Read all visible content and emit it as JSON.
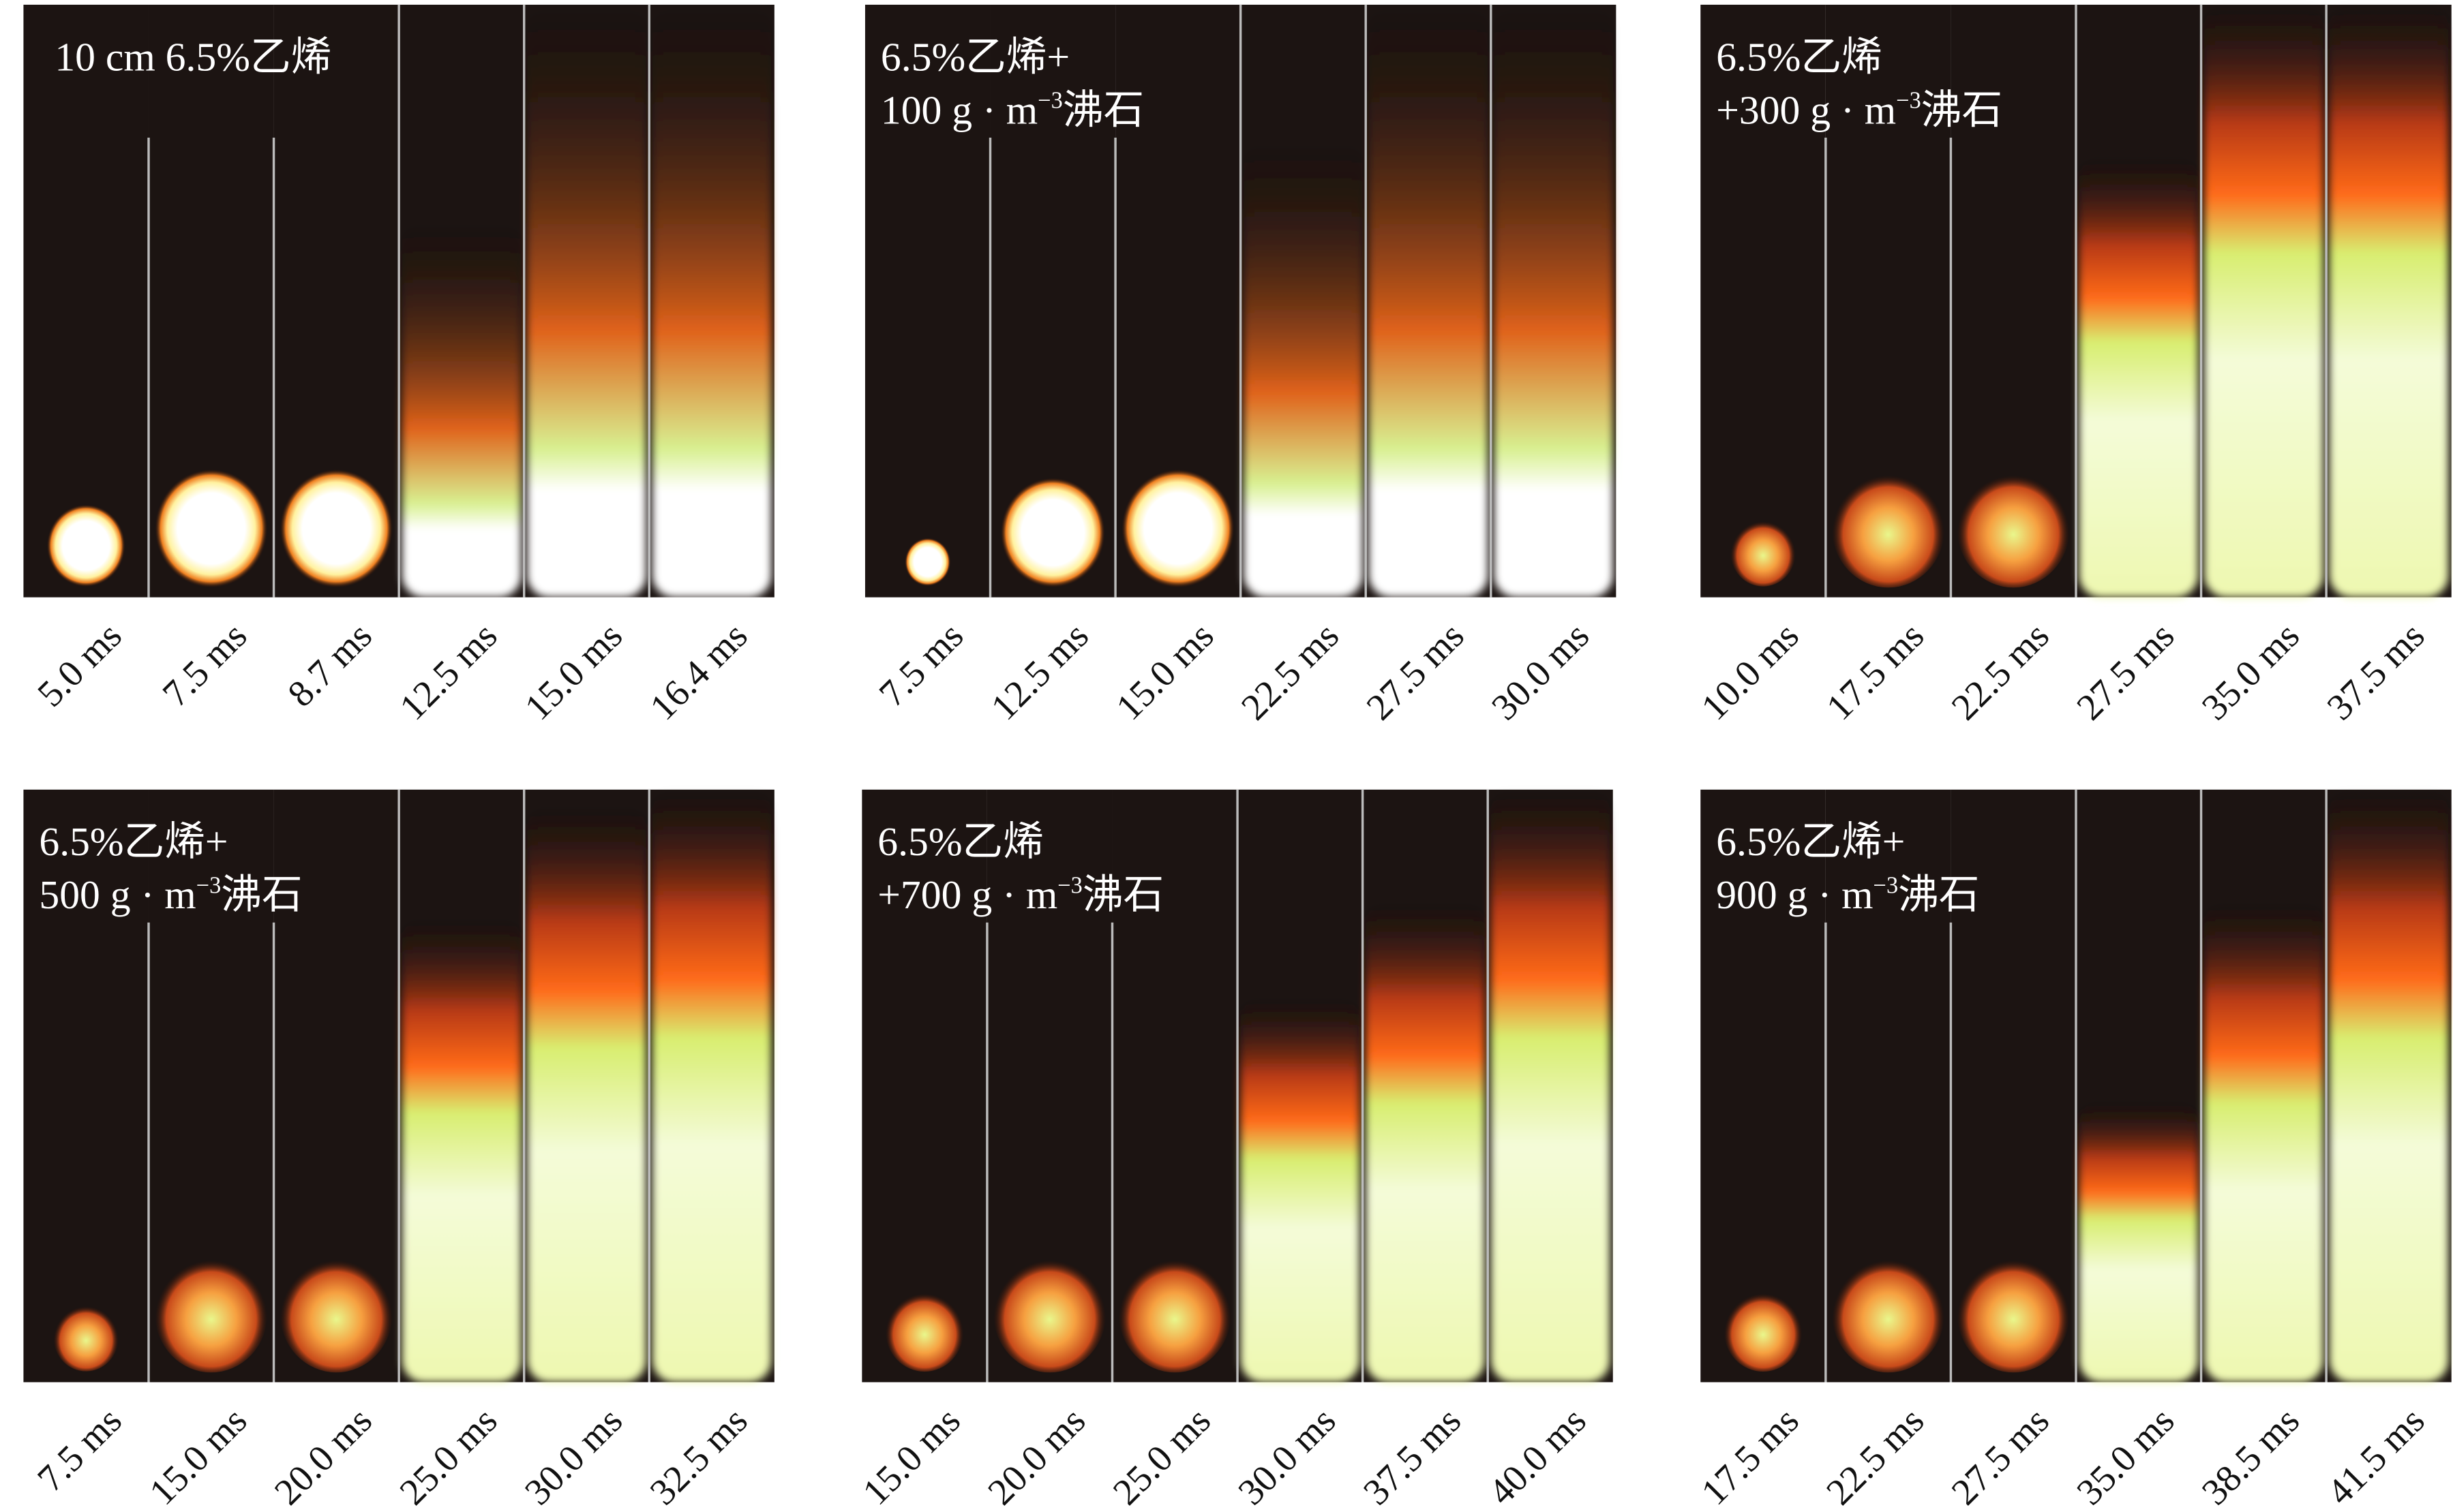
{
  "panels": [
    {
      "label": [
        {
          "text": "10 cm 6.5%乙烯"
        }
      ],
      "times": [
        "5.0 ms",
        "7.5 ms",
        "8.7 ms",
        "12.5 ms",
        "15.0 ms",
        "16.4 ms"
      ]
    },
    {
      "label": [
        {
          "text": "6.5%乙烯+"
        },
        {
          "text": "100 g · m",
          "sup": "−3",
          "after": "沸石"
        }
      ],
      "times": [
        "7.5 ms",
        "12.5 ms",
        "15.0 ms",
        "22.5 ms",
        "27.5 ms",
        "30.0 ms"
      ]
    },
    {
      "label": [
        {
          "text": "6.5%乙烯"
        },
        {
          "text": "+300 g · m",
          "sup": "−3",
          "after": "沸石"
        }
      ],
      "times": [
        "10.0 ms",
        "17.5 ms",
        "22.5 ms",
        "27.5 ms",
        "35.0 ms",
        "37.5 ms"
      ]
    },
    {
      "label": [
        {
          "text": "6.5%乙烯+"
        },
        {
          "text": "500 g · m",
          "sup": "−3",
          "after": "沸石"
        }
      ],
      "times": [
        "7.5 ms",
        "15.0 ms",
        "20.0 ms",
        "25.0 ms",
        "30.0 ms",
        "32.5 ms"
      ]
    },
    {
      "label": [
        {
          "text": "6.5%乙烯"
        },
        {
          "text": "+700 g · m",
          "sup": "−3",
          "after": "沸石"
        }
      ],
      "times": [
        "15.0 ms",
        "20.0 ms",
        "25.0 ms",
        "30.0 ms",
        "37.5 ms",
        "40.0 ms"
      ]
    },
    {
      "label": [
        {
          "text": "6.5%乙烯+"
        },
        {
          "text": "900 g · m",
          "sup": "−3",
          "after": "沸石"
        }
      ],
      "times": [
        "17.5 ms",
        "22.5 ms",
        "27.5 ms",
        "35.0 ms",
        "38.5 ms",
        "41.5 ms"
      ]
    }
  ]
}
